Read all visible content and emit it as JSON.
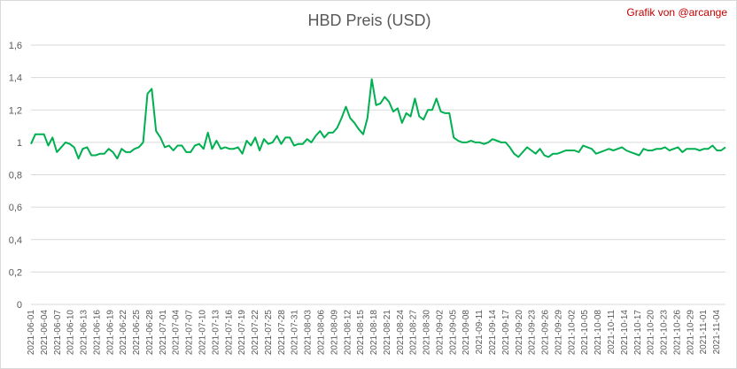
{
  "credit": "Grafik von @arcange",
  "chart_data": {
    "type": "line",
    "title": "HBD Preis (USD)",
    "xlabel": "",
    "ylabel": "",
    "ylim": [
      0,
      1.6
    ],
    "yticks": [
      "0",
      "0,2",
      "0,4",
      "0,6",
      "0,8",
      "1",
      "1,2",
      "1,4",
      "1,6"
    ],
    "grid": true,
    "line_color": "#00b050",
    "x_start": "2021-06-01",
    "x_end": "2021-11-06",
    "tick_labels": [
      "2021-06-01",
      "2021-06-04",
      "2021-06-07",
      "2021-06-10",
      "2021-06-13",
      "2021-06-16",
      "2021-06-19",
      "2021-06-22",
      "2021-06-25",
      "2021-06-28",
      "2021-07-01",
      "2021-07-04",
      "2021-07-07",
      "2021-07-10",
      "2021-07-13",
      "2021-07-16",
      "2021-07-19",
      "2021-07-22",
      "2021-07-25",
      "2021-07-28",
      "2021-07-31",
      "2021-08-03",
      "2021-08-06",
      "2021-08-09",
      "2021-08-12",
      "2021-08-15",
      "2021-08-18",
      "2021-08-21",
      "2021-08-24",
      "2021-08-27",
      "2021-08-30",
      "2021-09-02",
      "2021-09-05",
      "2021-09-08",
      "2021-09-11",
      "2021-09-14",
      "2021-09-17",
      "2021-09-20",
      "2021-09-23",
      "2021-09-26",
      "2021-09-29",
      "2021-10-02",
      "2021-10-05",
      "2021-10-08",
      "2021-10-11",
      "2021-10-14",
      "2021-10-17",
      "2021-10-20",
      "2021-10-23",
      "2021-10-26",
      "2021-10-29",
      "2021-11-01",
      "2021-11-04"
    ],
    "series": [
      {
        "values": [
          0.99,
          1.05,
          1.05,
          1.05,
          0.98,
          1.03,
          0.94,
          0.97,
          1.0,
          0.99,
          0.97,
          0.9,
          0.96,
          0.97,
          0.92,
          0.92,
          0.93,
          0.93,
          0.96,
          0.94,
          0.9,
          0.96,
          0.94,
          0.94,
          0.96,
          0.97,
          1.0,
          1.3,
          1.33,
          1.07,
          1.03,
          0.97,
          0.98,
          0.95,
          0.98,
          0.98,
          0.94,
          0.94,
          0.98,
          0.99,
          0.96,
          1.06,
          0.96,
          1.01,
          0.96,
          0.97,
          0.96,
          0.96,
          0.97,
          0.93,
          1.01,
          0.98,
          1.03,
          0.95,
          1.02,
          0.99,
          1.0,
          1.04,
          0.99,
          1.03,
          1.03,
          0.98,
          0.99,
          0.99,
          1.02,
          1.0,
          1.04,
          1.07,
          1.03,
          1.06,
          1.06,
          1.09,
          1.15,
          1.22,
          1.15,
          1.12,
          1.08,
          1.05,
          1.15,
          1.39,
          1.23,
          1.24,
          1.28,
          1.25,
          1.19,
          1.21,
          1.12,
          1.18,
          1.16,
          1.27,
          1.16,
          1.14,
          1.2,
          1.2,
          1.27,
          1.19,
          1.18,
          1.18,
          1.03,
          1.01,
          1.0,
          1.0,
          1.01,
          1.0,
          1.0,
          0.99,
          1.0,
          1.02,
          1.01,
          1.0,
          1.0,
          0.97,
          0.93,
          0.91,
          0.94,
          0.97,
          0.95,
          0.93,
          0.96,
          0.92,
          0.91,
          0.93,
          0.93,
          0.94,
          0.95,
          0.95,
          0.95,
          0.94,
          0.98,
          0.97,
          0.96,
          0.93,
          0.94,
          0.95,
          0.96,
          0.95,
          0.96,
          0.97,
          0.95,
          0.94,
          0.93,
          0.92,
          0.96,
          0.95,
          0.95,
          0.96,
          0.96,
          0.97,
          0.95,
          0.96,
          0.97,
          0.94,
          0.96,
          0.96,
          0.96,
          0.95,
          0.96,
          0.96,
          0.98,
          0.95,
          0.95,
          0.97
        ]
      }
    ]
  }
}
